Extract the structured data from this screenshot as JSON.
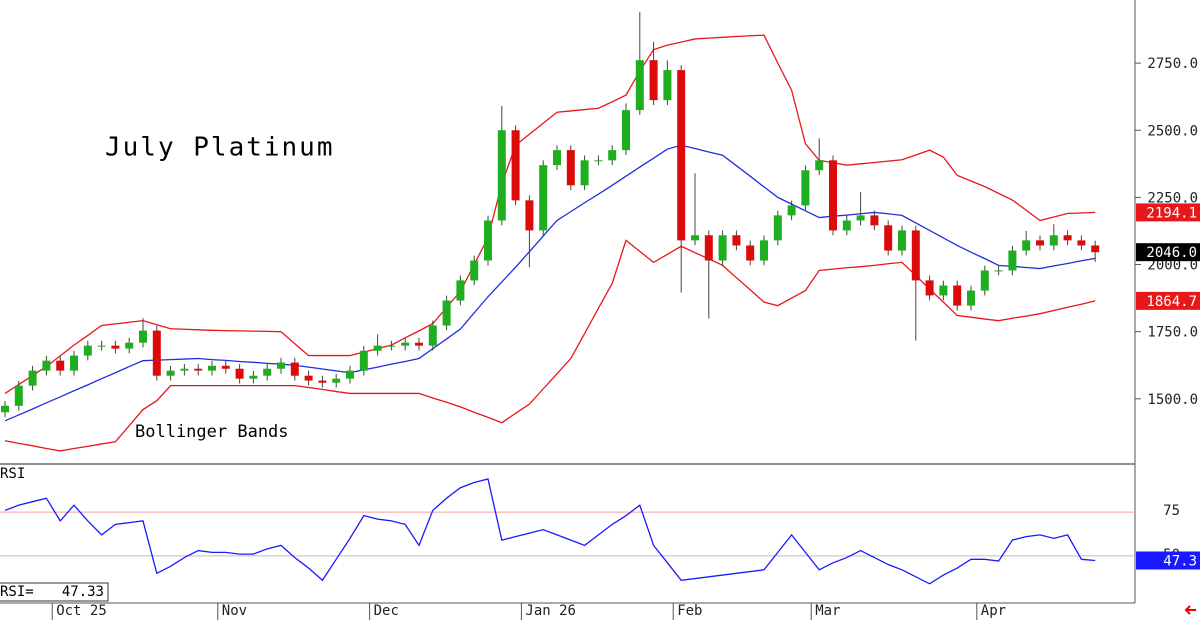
{
  "chart_data": [
    {
      "type": "candlestick",
      "title": "July Platinum",
      "annotation": "Bollinger Bands",
      "categories": [
        null,
        null,
        null,
        null,
        "Oct 25",
        null,
        null,
        null,
        null,
        null,
        null,
        null,
        null,
        null,
        null,
        null,
        "Nov",
        null,
        null,
        null,
        null,
        null,
        null,
        null,
        null,
        null,
        null,
        "Dec",
        null,
        null,
        null,
        null,
        null,
        null,
        null,
        null,
        null,
        null,
        "Jan 26",
        null,
        null,
        null,
        null,
        null,
        null,
        null,
        null,
        null,
        null,
        "Feb",
        null,
        null,
        null,
        null,
        null,
        null,
        null,
        null,
        null,
        "Mar",
        null,
        null,
        null,
        null,
        null,
        null,
        null,
        null,
        null,
        null,
        null,
        "Apr",
        null,
        null,
        null,
        null,
        null,
        null,
        null,
        null
      ],
      "open": [
        1450,
        1474,
        1549,
        1605,
        1642,
        1605,
        1661,
        1698,
        1698,
        1687,
        1709,
        1754,
        1586,
        1605,
        1612,
        1605,
        1623,
        1612,
        1575,
        1586,
        1612,
        1635,
        1586,
        1568,
        1560,
        1575,
        1605,
        1679,
        1698,
        1698,
        1709,
        1698,
        1773,
        1866,
        1941,
        2015,
        2164,
        2500,
        2239,
        2127,
        2370,
        2426,
        2295,
        2388,
        2388,
        2426,
        2575,
        2761,
        2612,
        2724,
        2090,
        2109,
        2015,
        2109,
        2071,
        2015,
        2090,
        2183,
        2220,
        2351,
        2388,
        2127,
        2164,
        2183,
        2146,
        2052,
        2127,
        1941,
        1885,
        1922,
        1847,
        1903,
        1978,
        1978,
        2052,
        2090,
        2071,
        2109,
        2090,
        2071
      ],
      "high": [
        1492,
        1567,
        1623,
        1660,
        1660,
        1679,
        1716,
        1716,
        1716,
        1727,
        1800,
        1772,
        1623,
        1630,
        1630,
        1641,
        1641,
        1630,
        1604,
        1630,
        1653,
        1653,
        1604,
        1586,
        1593,
        1623,
        1697,
        1740,
        1716,
        1727,
        1727,
        1791,
        1884,
        1959,
        2033,
        2182,
        2590,
        2518,
        2257,
        2388,
        2444,
        2444,
        2406,
        2406,
        2444,
        2600,
        2940,
        2830,
        2760,
        2742,
        2340,
        2127,
        2127,
        2127,
        2089,
        2108,
        2201,
        2238,
        2369,
        2470,
        2406,
        2182,
        2270,
        2201,
        2164,
        2145,
        2145,
        1959,
        1940,
        1940,
        1921,
        1996,
        1996,
        2070,
        2125,
        2108,
        2150,
        2127,
        2108,
        2089
      ],
      "low": [
        1432,
        1456,
        1531,
        1587,
        1587,
        1587,
        1643,
        1680,
        1669,
        1669,
        1691,
        1568,
        1568,
        1587,
        1587,
        1587,
        1594,
        1557,
        1557,
        1568,
        1594,
        1568,
        1550,
        1542,
        1542,
        1557,
        1587,
        1661,
        1680,
        1680,
        1680,
        1680,
        1755,
        1848,
        1923,
        1997,
        2146,
        2221,
        1990,
        2109,
        2352,
        2277,
        2277,
        2370,
        2370,
        2408,
        2557,
        2594,
        2594,
        1896,
        2072,
        1799,
        1997,
        2053,
        1997,
        1997,
        2072,
        2165,
        2202,
        2333,
        2109,
        2109,
        2146,
        2128,
        2034,
        2034,
        1717,
        1867,
        1867,
        1829,
        1829,
        1885,
        1960,
        1960,
        2034,
        2053,
        2053,
        2072,
        2053,
        2010
      ],
      "close": [
        1474,
        1549,
        1605,
        1642,
        1605,
        1661,
        1698,
        1698,
        1687,
        1709,
        1754,
        1586,
        1605,
        1612,
        1605,
        1623,
        1612,
        1575,
        1586,
        1612,
        1635,
        1586,
        1568,
        1560,
        1575,
        1605,
        1679,
        1698,
        1698,
        1709,
        1698,
        1773,
        1866,
        1941,
        2015,
        2164,
        2500,
        2239,
        2127,
        2370,
        2426,
        2295,
        2388,
        2388,
        2426,
        2575,
        2761,
        2612,
        2724,
        2090,
        2109,
        2015,
        2109,
        2071,
        2015,
        2090,
        2183,
        2220,
        2351,
        2388,
        2127,
        2164,
        2183,
        2146,
        2052,
        2127,
        1941,
        1885,
        1922,
        1847,
        1903,
        1978,
        1978,
        2052,
        2090,
        2071,
        2109,
        2090,
        2071,
        2046
      ],
      "close_labels": [
        null,
        null,
        null,
        null,
        null,
        null,
        null,
        null,
        null,
        null,
        null,
        null,
        null,
        null,
        null,
        null,
        null,
        null,
        null,
        null,
        null,
        null,
        null,
        null,
        null,
        null,
        null,
        null,
        null,
        null,
        null,
        null,
        null,
        null,
        null,
        null,
        null,
        null,
        null,
        null,
        null,
        null,
        null,
        null,
        null,
        null,
        null,
        null,
        null,
        null,
        null,
        null,
        null,
        null,
        null,
        null,
        null,
        null,
        null,
        null,
        null,
        null,
        null,
        null,
        null,
        null,
        null,
        null,
        null,
        null,
        null,
        null,
        null,
        null,
        null,
        null,
        null,
        null,
        null,
        "2046.0"
      ],
      "up_color": "#1fae1f",
      "down_color": "#dd0a0a",
      "label_color": "#000000",
      "overlays": [
        {
          "color": "#e8171a",
          "values": [
            1520,
            1553,
            1587,
            1620,
            1660,
            1700,
            1736,
            1773,
            1779,
            1785,
            1791,
            1776,
            1761,
            1759,
            1757,
            1755,
            1754,
            1753,
            1752,
            1751,
            1750,
            1705,
            1661,
            1661,
            1661,
            1661,
            1674,
            1687,
            1700,
            1727,
            1753,
            1780,
            1840,
            1900,
            2000,
            2100,
            2300,
            2444,
            2485,
            2526,
            2567,
            2572,
            2577,
            2582,
            2606,
            2631,
            2720,
            2800,
            2817,
            2828,
            2840,
            2843,
            2846,
            2849,
            2852,
            2854,
            2750,
            2649,
            2450,
            2388,
            2379,
            2370,
            2375,
            2380,
            2385,
            2390,
            2408,
            2426,
            2400,
            2332,
            2311,
            2290,
            2265,
            2240,
            2202,
            2164,
            2177,
            2190,
            2192,
            2194.1
          ],
          "labeled_last": true
        },
        {
          "color": "#1f2ee0",
          "values": [
            1418,
            1440,
            1462,
            1485,
            1507,
            1530,
            1552,
            1575,
            1597,
            1620,
            1642,
            1644,
            1646,
            1648,
            1650,
            1646,
            1643,
            1639,
            1636,
            1632,
            1629,
            1625,
            1618,
            1611,
            1604,
            1597,
            1608,
            1618,
            1629,
            1639,
            1650,
            1687,
            1723,
            1760,
            1820,
            1880,
            1935,
            1990,
            2048,
            2106,
            2164,
            2197,
            2230,
            2262,
            2295,
            2329,
            2363,
            2396,
            2430,
            2444,
            2432,
            2419,
            2407,
            2368,
            2329,
            2289,
            2250,
            2225,
            2200,
            2175,
            2180,
            2184,
            2189,
            2194,
            2189,
            2183,
            2155,
            2127,
            2099,
            2071,
            2046,
            2022,
            1997,
            1993,
            1989,
            1985,
            1995,
            2004,
            2014,
            2023
          ],
          "labeled_last": false
        },
        {
          "color": "#e8171a",
          "values": [
            1344,
            1334,
            1325,
            1315,
            1306,
            1315,
            1323,
            1332,
            1340,
            1400,
            1460,
            1493,
            1549,
            1549,
            1549,
            1549,
            1549,
            1549,
            1549,
            1549,
            1549,
            1549,
            1542,
            1535,
            1527,
            1520,
            1520,
            1520,
            1520,
            1520,
            1520,
            1503,
            1487,
            1470,
            1450,
            1431,
            1411,
            1446,
            1480,
            1537,
            1593,
            1650,
            1743,
            1837,
            1930,
            2090,
            2049,
            2008,
            2038,
            2068,
            2044,
            2021,
            1997,
            1951,
            1906,
            1860,
            1847,
            1875,
            1903,
            1978,
            1983,
            1988,
            1992,
            1997,
            2003,
            2008,
            1959,
            1909,
            1860,
            1810,
            1804,
            1797,
            1791,
            1800,
            1808,
            1817,
            1829,
            1841,
            1852,
            1864.7
          ],
          "labeled_last": true
        }
      ],
      "ylim": [
        1261,
        2985
      ],
      "yticks": [
        {
          "value": 1500,
          "label": "1500.0"
        },
        {
          "value": 1750,
          "label": "1750.0"
        },
        {
          "value": 2000,
          "label": "2000.0"
        },
        {
          "value": 2250,
          "label": "2250.0"
        },
        {
          "value": 2500,
          "label": "2500.0"
        },
        {
          "value": 2750,
          "label": "2750.0"
        }
      ]
    },
    {
      "type": "line",
      "title": "RSI",
      "readout_label": "RSI=",
      "color": "#1a1aff",
      "last_label": "47.3",
      "values": [
        76,
        79,
        81,
        83,
        70,
        79,
        70,
        62,
        68,
        69,
        70,
        40,
        44,
        49,
        53,
        52,
        52,
        51,
        51,
        54,
        56,
        49,
        43,
        36,
        48,
        60,
        73,
        71,
        70,
        68,
        56,
        76,
        83,
        89,
        92,
        94,
        59,
        61,
        63,
        65,
        62,
        59,
        56,
        62,
        68,
        73,
        79,
        56,
        46,
        36,
        37,
        38,
        39,
        40,
        41,
        42,
        52,
        62,
        52,
        42,
        46,
        49,
        53,
        49,
        45,
        42,
        38,
        34,
        39,
        43,
        48,
        48,
        47,
        59,
        61,
        62,
        60,
        62,
        48,
        47.33
      ],
      "ylim": [
        23,
        102
      ],
      "yticks": [
        50,
        75
      ],
      "tick_colors": [
        "#bdbdbd",
        "#f2a0a0"
      ]
    }
  ]
}
